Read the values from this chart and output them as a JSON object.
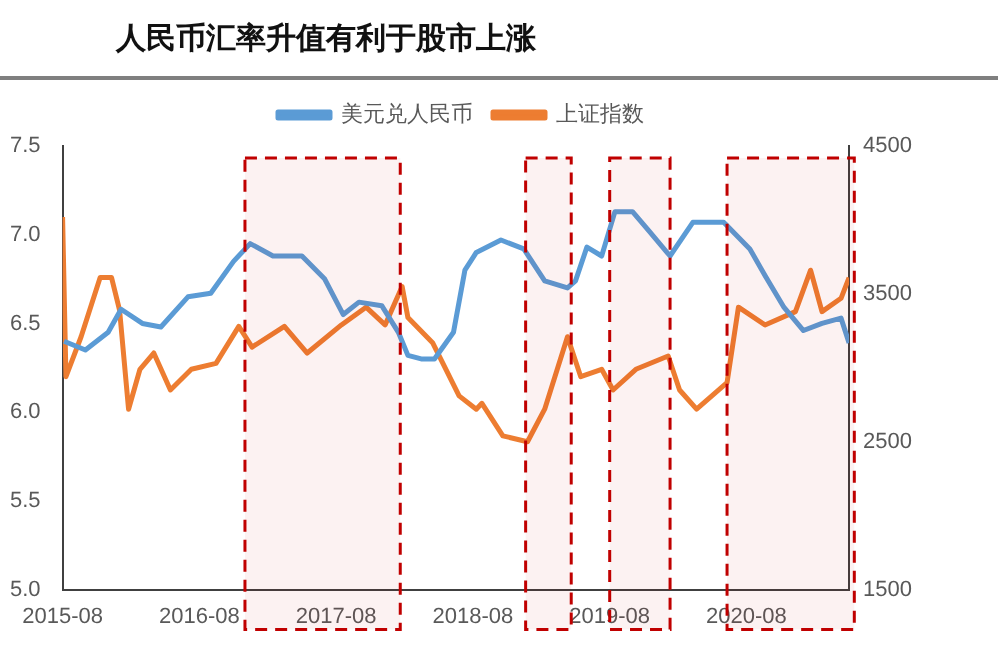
{
  "chart_data": {
    "type": "line",
    "title": "人民币汇率升值有利于股市上涨",
    "xlim": [
      "2015-08",
      "2021-05"
    ],
    "xticks": [
      "2015-08",
      "2016-08",
      "2017-08",
      "2018-08",
      "2019-08",
      "2020-08"
    ],
    "ylim": [
      5,
      7.5
    ],
    "yticks": [
      {
        "value": 5,
        "label": "5.0"
      },
      {
        "value": 5.5,
        "label": "5.5"
      },
      {
        "value": 6,
        "label": "6.0"
      },
      {
        "value": 6.5,
        "label": "6.5"
      },
      {
        "value": 7,
        "label": "7.0"
      },
      {
        "value": 7.5,
        "label": "7.5"
      }
    ],
    "y2lim": [
      1500,
      4500
    ],
    "y2ticks": [
      1500,
      2500,
      3500,
      4500
    ],
    "grid": false,
    "legend": "top",
    "marker": "none",
    "line_style": "solid",
    "series": [
      {
        "name": "美元兑人民币",
        "color": "#5b9bd5",
        "x": [
          "2015-08-05",
          "2015-10-01",
          "2015-12-01",
          "2016-01-05",
          "2016-03-01",
          "2016-04-20",
          "2016-07-01",
          "2016-09-01",
          "2016-11-01",
          "2016-12-15",
          "2017-02-15",
          "2017-05-01",
          "2017-07-01",
          "2017-08-20",
          "2017-10-01",
          "2017-12-01",
          "2018-01-15",
          "2018-02-10",
          "2018-03-15",
          "2018-04-20",
          "2018-06-10",
          "2018-07-10",
          "2018-08-10",
          "2018-10-15",
          "2018-12-15",
          "2019-02-10",
          "2019-04-10",
          "2019-05-01",
          "2019-06-01",
          "2019-07-10",
          "2019-08-15",
          "2019-10-01",
          "2019-11-15",
          "2020-01-10",
          "2020-03-10",
          "2020-06-01",
          "2020-08-10",
          "2020-09-20",
          "2020-11-10",
          "2021-01-01",
          "2021-02-20",
          "2021-04-10",
          "2021-05-01"
        ],
        "values": [
          6.4,
          6.35,
          6.45,
          6.58,
          6.5,
          6.48,
          6.65,
          6.67,
          6.85,
          6.95,
          6.88,
          6.88,
          6.75,
          6.55,
          6.62,
          6.6,
          6.45,
          6.32,
          6.3,
          6.3,
          6.45,
          6.8,
          6.9,
          6.97,
          6.92,
          6.74,
          6.7,
          6.74,
          6.93,
          6.88,
          7.13,
          7.13,
          7.02,
          6.88,
          7.07,
          7.07,
          6.92,
          6.77,
          6.59,
          6.46,
          6.5,
          6.53,
          6.39
        ]
      },
      {
        "name": "上证指数",
        "color": "#ed7d31",
        "axis": "y2",
        "x": [
          "2015-08-01",
          "2015-08-10",
          "2015-09-20",
          "2015-11-10",
          "2015-12-10",
          "2016-01-01",
          "2016-01-25",
          "2016-02-25",
          "2016-04-01",
          "2016-05-15",
          "2016-07-10",
          "2016-09-15",
          "2016-11-15",
          "2016-12-20",
          "2017-03-15",
          "2017-05-15",
          "2017-08-15",
          "2017-10-20",
          "2017-12-10",
          "2018-01-25",
          "2018-02-10",
          "2018-04-15",
          "2018-06-25",
          "2018-08-10",
          "2018-08-25",
          "2018-10-20",
          "2018-12-25",
          "2019-02-10",
          "2019-04-10",
          "2019-05-15",
          "2019-07-10",
          "2019-08-10",
          "2019-10-10",
          "2020-01-05",
          "2020-02-05",
          "2020-03-20",
          "2020-06-10",
          "2020-07-10",
          "2020-09-20",
          "2020-12-10",
          "2021-01-20",
          "2021-02-20",
          "2021-04-10",
          "2021-05-01"
        ],
        "values": [
          4020,
          2940,
          3210,
          3610,
          3610,
          3390,
          2720,
          2990,
          3100,
          2850,
          2990,
          3030,
          3280,
          3140,
          3280,
          3100,
          3290,
          3410,
          3290,
          3550,
          3340,
          3170,
          2810,
          2720,
          2760,
          2540,
          2500,
          2720,
          3210,
          2940,
          2990,
          2850,
          2990,
          3080,
          2850,
          2720,
          2900,
          3410,
          3290,
          3380,
          3660,
          3380,
          3470,
          3610
        ]
      }
    ],
    "bands": [
      {
        "axis": "x",
        "from": "2016-12-01",
        "to": "2018-01-20",
        "color": "#c00000"
      },
      {
        "axis": "x",
        "from": "2018-12-20",
        "to": "2019-04-20",
        "color": "#c00000"
      },
      {
        "axis": "x",
        "from": "2019-08-01",
        "to": "2020-01-10",
        "color": "#c00000"
      },
      {
        "axis": "x",
        "from": "2020-06-10",
        "to": "2021-05-15",
        "color": "#c00000"
      }
    ]
  }
}
